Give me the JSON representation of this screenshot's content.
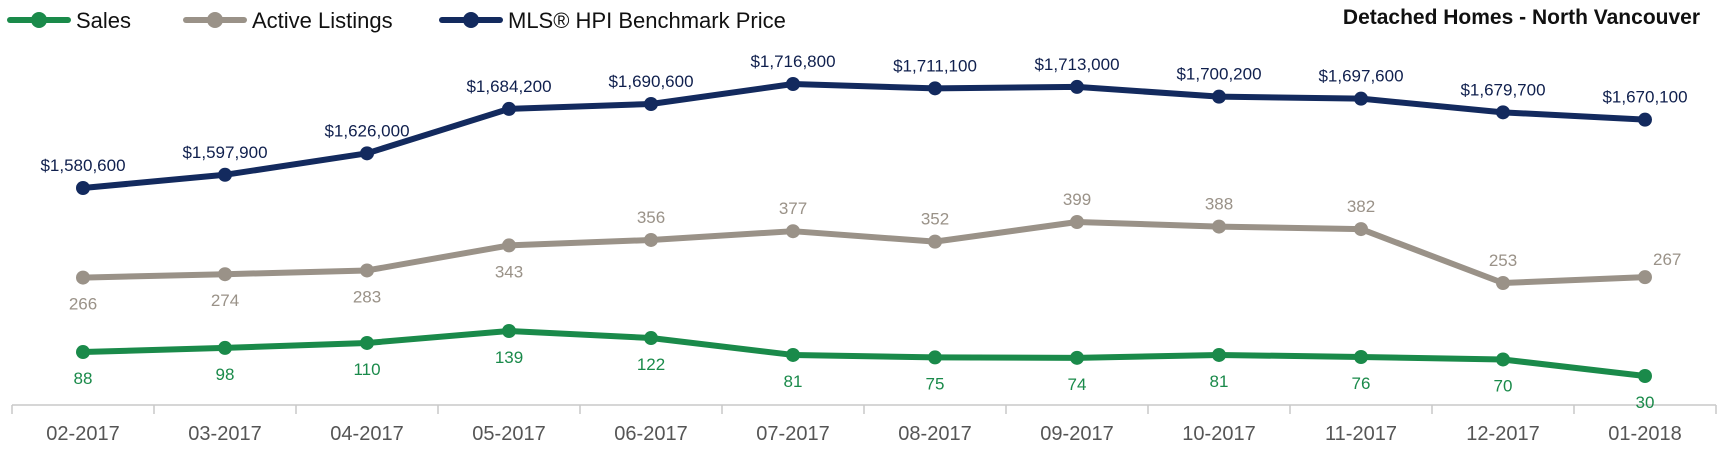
{
  "chart_data": {
    "type": "line",
    "title": "Detached Homes - North Vancouver",
    "categories": [
      "02-2017",
      "03-2017",
      "04-2017",
      "05-2017",
      "06-2017",
      "07-2017",
      "08-2017",
      "09-2017",
      "10-2017",
      "11-2017",
      "12-2017",
      "01-2018"
    ],
    "series": [
      {
        "name": "Sales",
        "color": "#1a8a4a",
        "values": [
          88,
          98,
          110,
          139,
          122,
          81,
          75,
          74,
          81,
          76,
          70,
          30
        ],
        "labels": [
          "88",
          "98",
          "110",
          "139",
          "122",
          "81",
          "75",
          "74",
          "81",
          "76",
          "70",
          "30"
        ]
      },
      {
        "name": "Active Listings",
        "color": "#9a9288",
        "values": [
          266,
          274,
          283,
          343,
          356,
          377,
          352,
          399,
          388,
          382,
          253,
          267
        ],
        "labels": [
          "266",
          "274",
          "283",
          "343",
          "356",
          "377",
          "352",
          "399",
          "388",
          "382",
          "253",
          "267"
        ]
      },
      {
        "name": "MLS® HPI Benchmark Price",
        "color": "#132a5e",
        "values": [
          1580600,
          1597900,
          1626000,
          1684200,
          1690600,
          1716800,
          1711100,
          1713000,
          1700200,
          1697600,
          1679700,
          1670100
        ],
        "labels": [
          "$1,580,600",
          "$1,597,900",
          "$1,626,000",
          "$1,684,200",
          "$1,690,600",
          "$1,716,800",
          "$1,711,100",
          "$1,713,000",
          "$1,700,200",
          "$1,697,600",
          "$1,679,700",
          "$1,670,100"
        ]
      }
    ],
    "legend_position": "top-left",
    "grid": false
  }
}
